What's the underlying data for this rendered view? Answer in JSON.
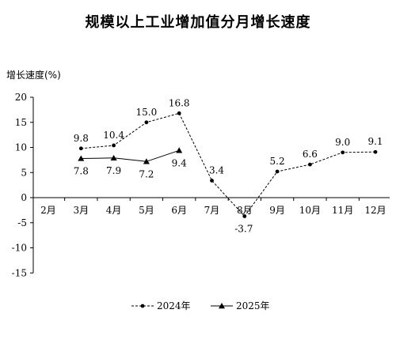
{
  "chart_data": {
    "type": "line",
    "title": "规模以上工业增加值分月增长速度",
    "ylabel": "增长速度(%)",
    "xlabel": "",
    "categories": [
      "2月",
      "3月",
      "4月",
      "5月",
      "6月",
      "7月",
      "8月",
      "9月",
      "10月",
      "11月",
      "12月"
    ],
    "yticks": [
      "20",
      "15",
      "10",
      "5",
      "0",
      "-5",
      "-10",
      "-15"
    ],
    "ylim": [
      -15,
      20
    ],
    "series": [
      {
        "name": "2024年",
        "style": "dashed",
        "marker": "circle",
        "values": [
          null,
          9.8,
          10.4,
          15.0,
          16.8,
          3.4,
          -3.7,
          5.2,
          6.6,
          9.0,
          9.1
        ],
        "labels": [
          null,
          "9.8",
          "10.4",
          "15.0",
          "16.8",
          "3.4",
          "-3.7",
          "5.2",
          "6.6",
          "9.0",
          "9.1"
        ]
      },
      {
        "name": "2025年",
        "style": "solid",
        "marker": "triangle",
        "values": [
          null,
          7.8,
          7.9,
          7.2,
          9.4,
          null,
          null,
          null,
          null,
          null,
          null
        ],
        "labels": [
          null,
          "7.8",
          "7.9",
          "7.2",
          "9.4",
          null,
          null,
          null,
          null,
          null,
          null
        ]
      }
    ],
    "legend_position": "bottom-center",
    "grid": false
  }
}
